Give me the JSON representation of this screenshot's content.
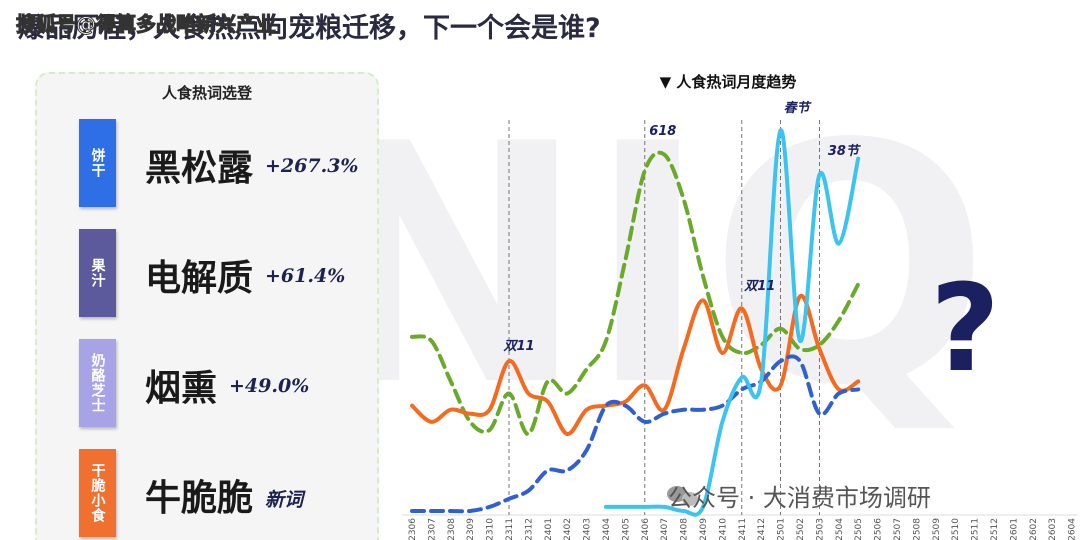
{
  "header": {
    "title": "爆品历程，人食热点向宠粮迁移，下一个会是谁?",
    "watermark": "搜狐号@得算多战略新兴产业"
  },
  "panel": {
    "title": "人食热词选登",
    "items": [
      {
        "tag": "饼干",
        "color": "#2f6fe6",
        "keyword": "黑松露",
        "change": "+267.3%"
      },
      {
        "tag": "果汁",
        "color": "#5c5a9c",
        "keyword": "电解质",
        "change": "+61.4%"
      },
      {
        "tag": "奶酪芝士",
        "color": "#a7a3e6",
        "keyword": "烟熏",
        "change": "+49.0%"
      },
      {
        "tag": "干脆小食",
        "color": "#f07030",
        "keyword": "牛脆脆",
        "change": "新词"
      }
    ]
  },
  "chart_data": {
    "type": "line",
    "title": "▼ 人食热词月度趋势",
    "categories": [
      "2306",
      "2307",
      "2308",
      "2309",
      "2310",
      "2311",
      "2312",
      "2401",
      "2402",
      "2403",
      "2404",
      "2405",
      "2406",
      "2407",
      "2408",
      "2409",
      "2410",
      "2411",
      "2412",
      "2501",
      "2502",
      "2503",
      "2504",
      "2505",
      "2506",
      "2507",
      "2508",
      "2509",
      "2510",
      "2511",
      "2512",
      "2601",
      "2602",
      "2603",
      "2604"
    ],
    "ylim": [
      0,
      100
    ],
    "series": [
      {
        "color": "#6aaa2a",
        "dashed": true,
        "values": [
          44,
          43,
          33,
          23,
          21,
          30,
          20,
          33,
          30,
          36,
          43,
          63,
          85,
          89,
          78,
          59,
          44,
          40,
          42,
          46,
          41,
          42,
          48,
          57,
          null,
          null,
          null,
          null,
          null,
          null,
          null,
          null,
          null,
          null,
          null
        ]
      },
      {
        "color": "#f26b20",
        "dashed": false,
        "values": [
          27,
          23,
          26,
          25,
          26,
          38,
          30,
          28,
          20,
          26,
          27,
          28,
          32,
          26,
          41,
          53,
          40,
          51,
          36,
          32,
          54,
          41,
          31,
          33,
          null,
          null,
          null,
          null,
          null,
          null,
          null,
          null,
          null,
          null,
          null
        ]
      },
      {
        "color": "#3060d0",
        "dashed": true,
        "values": [
          1,
          1,
          1,
          1,
          2,
          4,
          6,
          11,
          11,
          16,
          27,
          27,
          23,
          25,
          26,
          26,
          27,
          31,
          33,
          38,
          38,
          25,
          30,
          31,
          null,
          null,
          null,
          null,
          null,
          null,
          null,
          null,
          null,
          null,
          null
        ]
      },
      {
        "color": "#3cc4ee",
        "dashed": false,
        "values": [
          null,
          null,
          null,
          null,
          null,
          null,
          null,
          null,
          null,
          null,
          2,
          2,
          2,
          2,
          1,
          2,
          23,
          34,
          33,
          95,
          43,
          84,
          67,
          88,
          null,
          null,
          null,
          null,
          null,
          null,
          null,
          null,
          null,
          null,
          null
        ]
      }
    ],
    "annotations": [
      {
        "text": "双11",
        "at": "2311"
      },
      {
        "text": "618",
        "at": "2406"
      },
      {
        "text": "双11",
        "at": "2411"
      },
      {
        "text": "春节",
        "at": "2501"
      },
      {
        "text": "38节",
        "at": "2503"
      }
    ]
  },
  "background_logo": "NIQ",
  "question_mark": "?",
  "footer_watermark": "公众号 · 大消费市场调研"
}
